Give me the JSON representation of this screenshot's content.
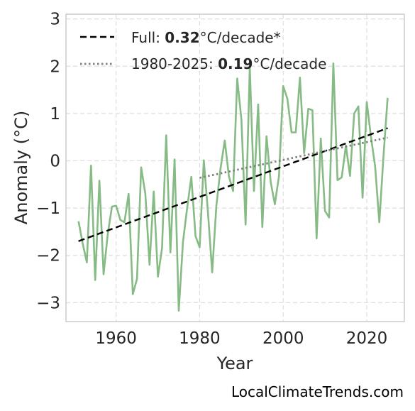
{
  "chart_data": {
    "type": "line",
    "xlabel": "Year",
    "ylabel": "Anomaly (°C)",
    "xlim": [
      1948,
      2029
    ],
    "ylim": [
      -3.4,
      3.1
    ],
    "xticks": [
      1960,
      1980,
      2000,
      2020
    ],
    "yticks": [
      -3,
      -2,
      -1,
      0,
      1,
      2,
      3
    ],
    "grid": true,
    "legend": "top-left",
    "series": [
      {
        "color": "#86bb85",
        "x": [
          1951,
          1952,
          1953,
          1954,
          1955,
          1956,
          1957,
          1958,
          1959,
          1960,
          1961,
          1962,
          1963,
          1964,
          1965,
          1966,
          1967,
          1968,
          1969,
          1970,
          1971,
          1972,
          1973,
          1974,
          1975,
          1976,
          1977,
          1978,
          1979,
          1980,
          1981,
          1982,
          1983,
          1984,
          1985,
          1986,
          1987,
          1988,
          1989,
          1990,
          1991,
          1992,
          1993,
          1994,
          1995,
          1996,
          1997,
          1998,
          1999,
          2000,
          2001,
          2002,
          2003,
          2004,
          2005,
          2006,
          2007,
          2008,
          2009,
          2010,
          2011,
          2012,
          2013,
          2014,
          2015,
          2016,
          2017,
          2018,
          2019,
          2020,
          2021,
          2022,
          2023,
          2024,
          2025
        ],
        "y": [
          -1.28,
          -1.75,
          -2.15,
          -0.1,
          -2.52,
          -0.42,
          -2.4,
          -1.55,
          -0.97,
          -0.95,
          -1.25,
          -1.3,
          -0.7,
          -2.82,
          -2.5,
          -0.14,
          -0.7,
          -2.2,
          -0.65,
          -2.45,
          -1.85,
          0.54,
          -1.94,
          0.03,
          -3.17,
          -1.72,
          -1.0,
          -0.34,
          -1.59,
          -1.83,
          0.01,
          -1.1,
          -2.36,
          -0.95,
          -0.16,
          0.43,
          -0.33,
          -0.64,
          1.74,
          0.87,
          -1.35,
          1.98,
          -0.64,
          1.19,
          -1.4,
          0.52,
          -0.45,
          -0.92,
          -0.32,
          1.58,
          1.31,
          0.6,
          0.6,
          1.76,
          0.16,
          1.1,
          1.07,
          -1.64,
          0.47,
          -1.06,
          -1.2,
          2.06,
          -0.41,
          -0.35,
          0.32,
          -0.32,
          1.0,
          1.15,
          -0.78,
          1.24,
          0.51,
          -0.12,
          -1.3,
          0.1,
          1.33
        ]
      }
    ],
    "trends": [
      {
        "legend_prefix": "Full: ",
        "legend_value": "0.32",
        "legend_suffix": "°C/decade*",
        "style": "dashed",
        "color": "#000000",
        "x": [
          1951,
          2025
        ],
        "y": [
          -1.7,
          0.69
        ]
      },
      {
        "legend_prefix": "1980-2025: ",
        "legend_value": "0.19",
        "legend_suffix": "°C/decade",
        "style": "dotted",
        "color": "#808080",
        "x": [
          1980,
          2025
        ],
        "y": [
          -0.36,
          0.49
        ]
      }
    ],
    "watermark": "LocalClimateTrends.com"
  }
}
